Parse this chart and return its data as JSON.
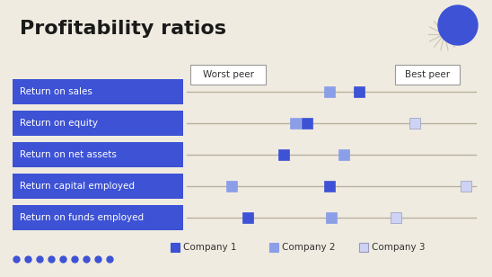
{
  "title": "Profitability ratios",
  "background_color": "#f0ebe0",
  "rows": [
    "Return on sales",
    "Return on equity",
    "Return on net assets",
    "Return capital employed",
    "Return on funds employed"
  ],
  "worst_peer_label": "Worst peer",
  "best_peer_label": "Best peer",
  "markers": {
    "Return on sales": {
      "c1": 0.595,
      "c2": 0.495,
      "c3": null
    },
    "Return on equity": {
      "c1": 0.415,
      "c2": 0.375,
      "c3": 0.79
    },
    "Return on net assets": {
      "c1": 0.335,
      "c2": 0.545,
      "c3": null
    },
    "Return capital employed": {
      "c1": 0.495,
      "c2": 0.155,
      "c3": 0.965
    },
    "Return on funds employed": {
      "c1": 0.21,
      "c2": 0.5,
      "c3": 0.725
    }
  },
  "color_c1": "#3d52d5",
  "color_c2": "#8b9ee8",
  "color_c3": "#cdd3f5",
  "label_bg_color": "#3d52d5",
  "label_text_color": "#ffffff",
  "line_color": "#b8b0a0",
  "box_edge_color": "#999999",
  "box_fill_color": "#ffffff",
  "legend_labels": [
    "Company 1",
    "Company 2",
    "Company 3"
  ],
  "legend_colors": [
    "#3d52d5",
    "#8b9ee8",
    "#cdd3f5"
  ],
  "dot_color": "#3d52d5",
  "dot_count": 9,
  "balloon_color": "#3d52d5",
  "starburst_color": "#d0cabb"
}
